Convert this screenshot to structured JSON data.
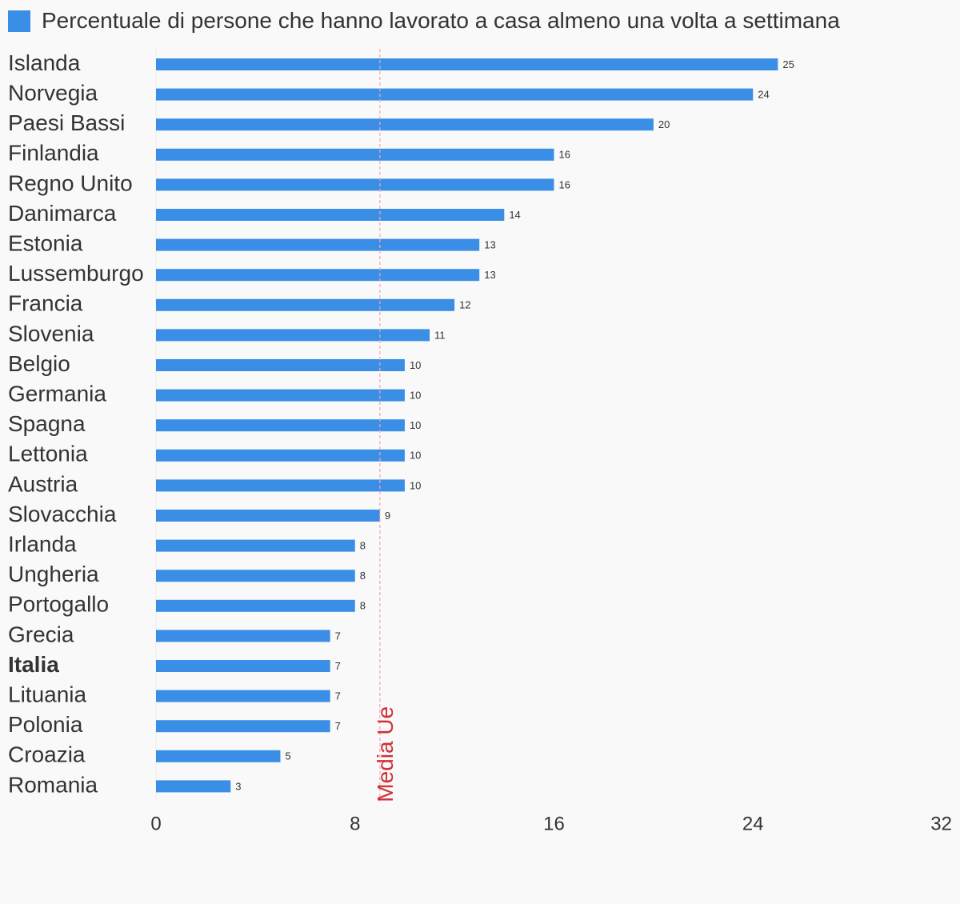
{
  "legend": {
    "label": "Percentuale di persone che hanno lavorato a casa almeno una volta a settimana",
    "color": "#3a8ee6"
  },
  "chart_data": {
    "type": "bar",
    "orientation": "horizontal",
    "title": "",
    "xlabel": "",
    "ylabel": "",
    "categories": [
      "Islanda",
      "Norvegia",
      "Paesi Bassi",
      "Finlandia",
      "Regno Unito",
      "Danimarca",
      "Estonia",
      "Lussemburgo",
      "Francia",
      "Slovenia",
      "Belgio",
      "Germania",
      "Spagna",
      "Lettonia",
      "Austria",
      "Slovacchia",
      "Irlanda",
      "Ungheria",
      "Portogallo",
      "Grecia",
      "Italia",
      "Lituania",
      "Polonia",
      "Croazia",
      "Romania"
    ],
    "highlighted_category": "Italia",
    "series": [
      {
        "name": "Percentuale di persone che hanno lavorato a casa almeno una volta a settimana",
        "values": [
          25,
          24,
          20,
          16,
          16,
          14,
          13,
          13,
          12,
          11,
          10,
          10,
          10,
          10,
          10,
          9,
          8,
          8,
          8,
          7,
          7,
          7,
          7,
          5,
          3
        ],
        "color": "#3a8ee6"
      }
    ],
    "xlim": [
      0,
      32
    ],
    "xticks": [
      0,
      8,
      16,
      24,
      32
    ],
    "reference_line": {
      "label": "Media Ue",
      "value": 9,
      "color": "#d0303a"
    },
    "grid": false,
    "legend_position": "top-left"
  }
}
